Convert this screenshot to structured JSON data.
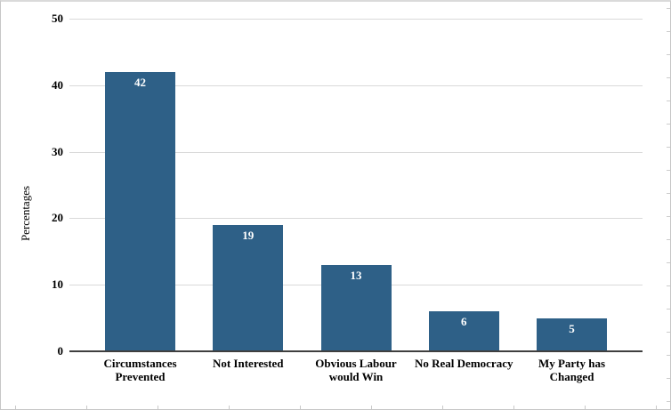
{
  "figure": {
    "background": "#ffffff",
    "frame_border_color": "#c6c6c6"
  },
  "chart_data": {
    "type": "bar",
    "categories": [
      "Circumstances\nPrevented",
      "Not Interested",
      "Obvious Labour\nwould Win",
      "No Real Democracy",
      "My Party has\nChanged"
    ],
    "values": [
      42,
      19,
      13,
      6,
      5
    ],
    "ylabel": "Percentages",
    "ylim": [
      0,
      50
    ],
    "yticks": [
      0,
      10,
      20,
      30,
      40,
      50
    ],
    "grid": true,
    "legend_position": "none",
    "colors": {
      "bar": "#2E6087",
      "value_label": "#FFFFFF",
      "gridline": "#D9D9D9",
      "axis_line": "#3F3F3F",
      "tick_text": "#000000",
      "category_text": "#000000"
    }
  }
}
